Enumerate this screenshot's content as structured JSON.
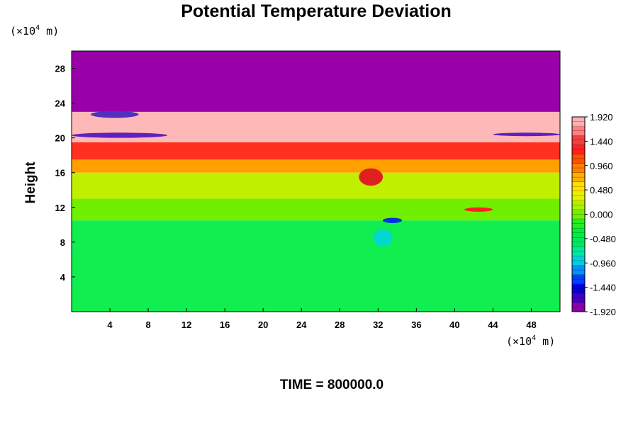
{
  "chart_data": {
    "type": "heatmap",
    "title": "Potential Temperature Deviation",
    "ylabel": "Height",
    "y_unit_prefix": "(×10",
    "y_unit_exp": "4",
    "y_unit_suffix": " m)",
    "x_unit_prefix": "(×10",
    "x_unit_exp": "4",
    "x_unit_suffix": " m)",
    "xlim": [
      0,
      51
    ],
    "ylim": [
      0,
      30
    ],
    "x_ticks": [
      4,
      8,
      12,
      16,
      20,
      24,
      28,
      32,
      36,
      40,
      44,
      48
    ],
    "y_ticks": [
      4,
      8,
      12,
      16,
      20,
      24,
      28
    ],
    "colorbar": {
      "min": -1.92,
      "max": 1.92,
      "labels": [
        "1.920",
        "1.440",
        "0.960",
        "0.480",
        "0.000",
        "-0.480",
        "-0.960",
        "-1.440",
        "-1.920"
      ],
      "colors": [
        "#8800a8",
        "#4400c0",
        "#0000e0",
        "#0040ff",
        "#0090ff",
        "#00d0e0",
        "#00e8a0",
        "#00e860",
        "#00ee40",
        "#20f020",
        "#70f000",
        "#b0f000",
        "#e8f000",
        "#ffe000",
        "#ffb000",
        "#ff8000",
        "#ff5000",
        "#ff2020",
        "#f04040",
        "#ff8080",
        "#ffb0b0"
      ]
    },
    "bands": [
      {
        "y_from": 0,
        "y_to": 10.5,
        "color": "#10ee50"
      },
      {
        "y_from": 10.5,
        "y_to": 13,
        "color": "#70f000"
      },
      {
        "y_from": 13,
        "y_to": 16,
        "color": "#c0f000"
      },
      {
        "y_from": 16,
        "y_to": 17.5,
        "color": "#ffa000"
      },
      {
        "y_from": 17.5,
        "y_to": 19.5,
        "color": "#ff3020"
      },
      {
        "y_from": 19.5,
        "y_to": 23,
        "color": "#ffb8b8"
      },
      {
        "y_from": 23,
        "y_to": 30,
        "color": "#9900a8"
      }
    ],
    "features": [
      {
        "x": 30,
        "y": 14.5,
        "w": 2.5,
        "h": 2,
        "color": "#e02020"
      },
      {
        "x": 32.5,
        "y": 10.2,
        "w": 2,
        "h": 0.6,
        "color": "#0030e0"
      },
      {
        "x": 31.5,
        "y": 7.5,
        "w": 2,
        "h": 2,
        "color": "#00d8d0"
      },
      {
        "x": 41,
        "y": 11.5,
        "w": 3,
        "h": 0.5,
        "color": "#ff2020"
      },
      {
        "x": 0,
        "y": 20,
        "w": 10,
        "h": 0.6,
        "color": "#6020c0"
      },
      {
        "x": 44,
        "y": 20.2,
        "w": 7,
        "h": 0.4,
        "color": "#6020c0"
      },
      {
        "x": 2,
        "y": 22.3,
        "w": 5,
        "h": 0.8,
        "color": "#5030c0"
      }
    ]
  },
  "footer": {
    "time_label": "TIME = 800000.0"
  }
}
